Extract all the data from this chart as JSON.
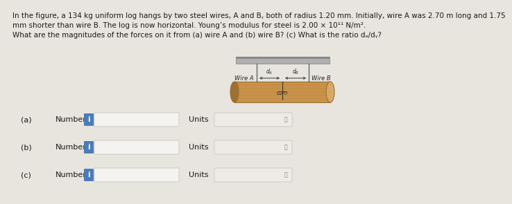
{
  "bg_color": "#e8e5de",
  "text_color": "#1a1a1a",
  "para_lines": [
    "In the figure, a 134 kg uniform log hangs by two steel wires, A and B, both of radius 1.20 mm. Initially, wire A was 2.70 m long and 1.75",
    "mm shorter than wire B. The log is now horizontal. Young’s modulus for steel is 2.00 × 10¹¹ N/m².",
    "What are the magnitudes of the forces on it from (a) wire A and (b) wire B? (c) What is the ratio dₐ/dᵧ?"
  ],
  "diagram": {
    "ceiling_fc": "#b0b0b0",
    "ceiling_ec": "#888888",
    "wire_color": "#666666",
    "log_fc": "#c8924a",
    "log_ec": "#9a6e30",
    "log_left_fc": "#a07030",
    "log_right_fc": "#daa868",
    "grain_color": "#a07030",
    "arrow_color": "#333333",
    "com_line_color": "#333333",
    "label_wire_A": "Wire A",
    "label_wire_B": "Wire B",
    "label_com": "com",
    "label_dA": "$d_A$",
    "label_dB": "$d_B$"
  },
  "rows": [
    {
      "prefix": "(a)",
      "label": "Number",
      "units_label": "Units"
    },
    {
      "prefix": "(b)",
      "label": "Number",
      "units_label": "Units"
    },
    {
      "prefix": "(c)",
      "label": "Number",
      "units_label": "Units"
    }
  ],
  "input_box_fc": "#f5f3ef",
  "input_box_ec": "#c8c4be",
  "units_box_fc": "#eeebe6",
  "units_box_ec": "#c8c4be",
  "info_btn_fc": "#4a7db8",
  "info_btn_text": "i",
  "para_fontsize": 7.5,
  "label_fontsize": 8.0,
  "info_fontsize": 7.5,
  "diag_fontsize": 6.0
}
